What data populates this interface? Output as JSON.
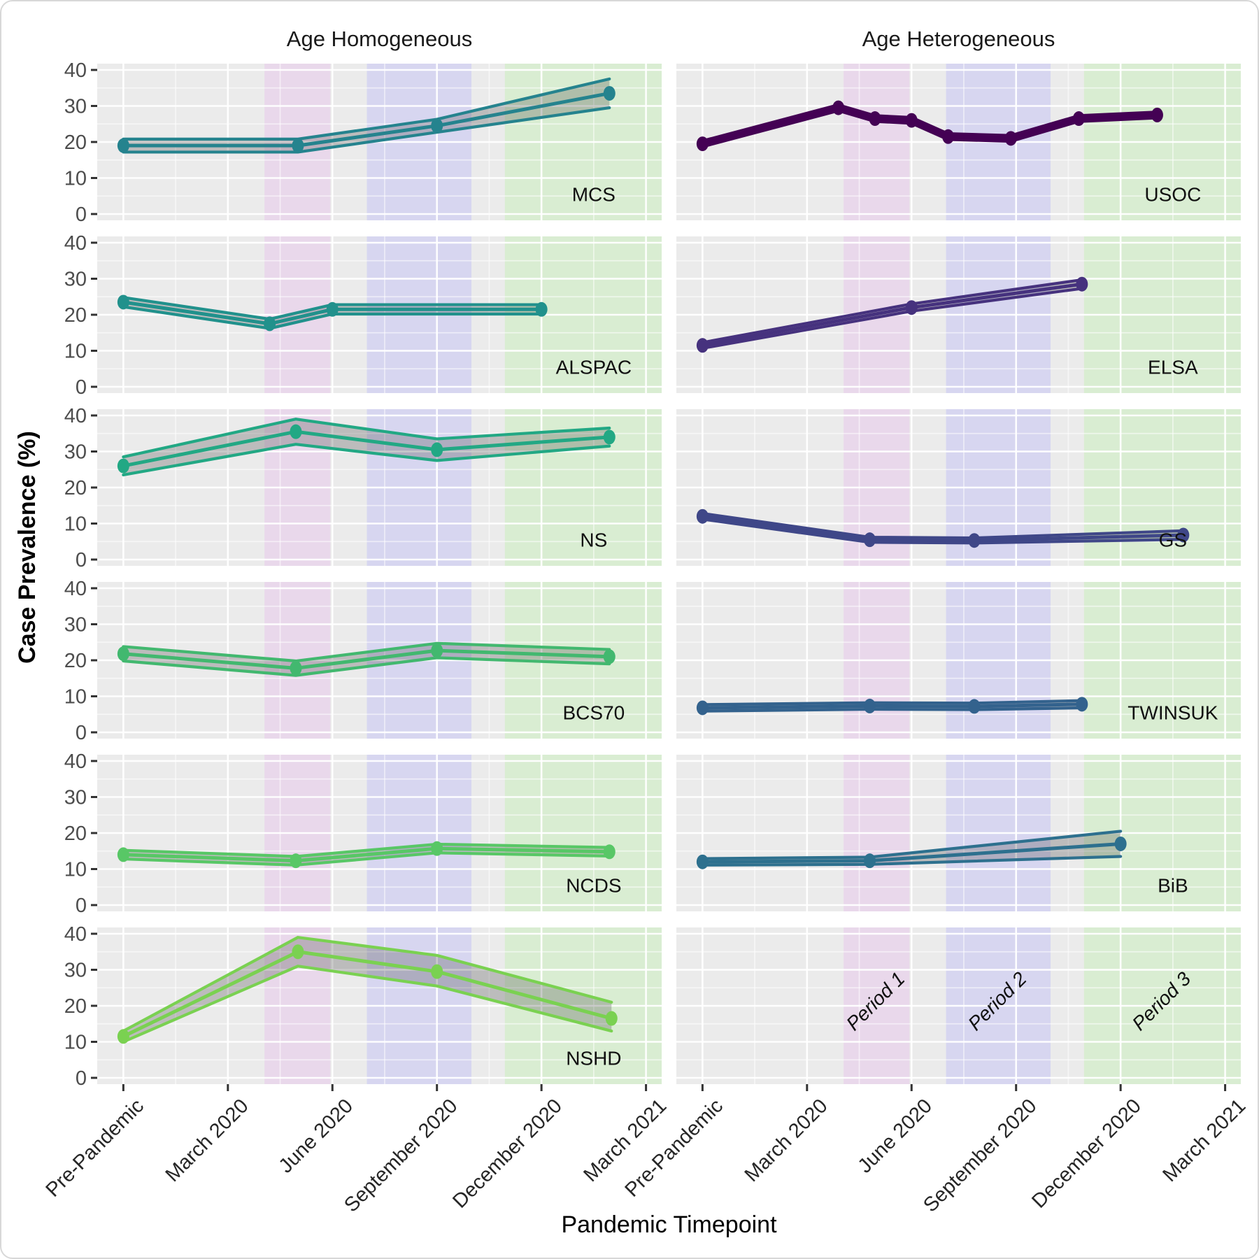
{
  "figure": {
    "facet_titles": [
      "Age Homogeneous",
      "Age Heterogeneous"
    ],
    "xlabel": "Pandemic Timepoint",
    "ylabel": "Case Prevalence (%)"
  },
  "style": {
    "panel_bg": "#ebebeb",
    "grid_major": "rgba(255,255,255,0.95)",
    "grid_minor": "rgba(255,255,255,0.55)",
    "ribbon_fill": "rgba(70,70,70,0.28)",
    "tick_mark_color": "#333333",
    "y_tick_text_color": "#4d4d4d",
    "x_tick_text_color": "#262626",
    "panel_label_color": "#111111",
    "period_label_color": "#111111"
  },
  "chart_data": {
    "type": "line",
    "title": "",
    "xlabel": "Pandemic Timepoint",
    "ylabel": "Case Prevalence (%)",
    "facet_columns": [
      "Age Homogeneous",
      "Age Heterogeneous"
    ],
    "x_categories": [
      "Pre-Pandemic",
      "March 2020",
      "June 2020",
      "September 2020",
      "December 2020",
      "March 2021"
    ],
    "x_domain": [
      -0.25,
      5.15
    ],
    "ylim": [
      0,
      40
    ],
    "yticks": [
      0,
      10,
      20,
      30,
      40
    ],
    "yticks_minor": [
      5,
      15,
      25,
      35
    ],
    "grid": true,
    "study_label_x": 4.5,
    "study_label_y": 5,
    "periods": [
      {
        "label": "Period 1",
        "x0": 1.35,
        "x1": 1.98,
        "color": "#e9d8eb"
      },
      {
        "label": "Period 2",
        "x0": 2.33,
        "x1": 3.33,
        "color": "#d7d6f0"
      },
      {
        "label": "Period 3",
        "x0": 3.65,
        "x1": 5.15,
        "color": "#d9edd2"
      }
    ],
    "panels": [
      {
        "study": "MCS",
        "col": 0,
        "row": 0,
        "color": "#25838e",
        "x": [
          0,
          1.67,
          3.0,
          4.65
        ],
        "y": [
          19,
          19,
          24.5,
          33.5
        ],
        "lo": [
          17.2,
          17.2,
          22.7,
          29.5
        ],
        "hi": [
          20.8,
          20.8,
          26.3,
          37.5
        ]
      },
      {
        "study": "USOC",
        "col": 1,
        "row": 0,
        "color": "#440154",
        "x": [
          0,
          1.3,
          1.65,
          2.0,
          2.35,
          2.95,
          3.6,
          4.35
        ],
        "y": [
          19.5,
          29.5,
          26.5,
          26,
          21.5,
          21,
          26.5,
          27.5
        ],
        "lo": [
          18.7,
          28.7,
          25.7,
          25.2,
          20.7,
          20.2,
          25.7,
          26.7
        ],
        "hi": [
          20.3,
          30.3,
          27.3,
          26.8,
          22.3,
          21.8,
          27.3,
          28.3
        ]
      },
      {
        "study": "ALSPAC",
        "col": 0,
        "row": 1,
        "color": "#21918c",
        "x": [
          0,
          1.4,
          2.0,
          4.0
        ],
        "y": [
          23.5,
          17.5,
          21.5,
          21.5
        ],
        "lo": [
          22.2,
          16.2,
          20.2,
          20.2
        ],
        "hi": [
          24.8,
          18.8,
          22.8,
          22.8
        ]
      },
      {
        "study": "ELSA",
        "col": 1,
        "row": 1,
        "color": "#46327e",
        "x": [
          0,
          2.0,
          3.63
        ],
        "y": [
          11.5,
          22,
          28.5
        ],
        "lo": [
          10.7,
          21,
          27.3
        ],
        "hi": [
          12.3,
          23,
          29.7
        ]
      },
      {
        "study": "NS",
        "col": 0,
        "row": 2,
        "color": "#22a884",
        "x": [
          0,
          1.65,
          3.0,
          4.65
        ],
        "y": [
          26,
          35.5,
          30.5,
          34
        ],
        "lo": [
          23.5,
          32,
          27.5,
          31.5
        ],
        "hi": [
          28.5,
          39,
          33.5,
          36.5
        ]
      },
      {
        "study": "GS",
        "col": 1,
        "row": 2,
        "color": "#3f4788",
        "x": [
          0,
          1.6,
          2.6,
          4.6
        ],
        "y": [
          12,
          5.5,
          5.3,
          6.8
        ],
        "lo": [
          11.2,
          4.8,
          4.6,
          5.6
        ],
        "hi": [
          12.8,
          6.2,
          6.0,
          8.0
        ]
      },
      {
        "study": "BCS70",
        "col": 0,
        "row": 3,
        "color": "#42b86f",
        "x": [
          0,
          1.65,
          3.0,
          4.65
        ],
        "y": [
          21.8,
          17.8,
          22.7,
          21
        ],
        "lo": [
          19.8,
          15.8,
          20.7,
          19
        ],
        "hi": [
          23.8,
          19.8,
          24.7,
          23
        ]
      },
      {
        "study": "TWINSUK",
        "col": 1,
        "row": 3,
        "color": "#33628d",
        "x": [
          0,
          1.6,
          2.6,
          3.63
        ],
        "y": [
          6.8,
          7.3,
          7.2,
          7.8
        ],
        "lo": [
          5.9,
          6.4,
          6.3,
          6.8
        ],
        "hi": [
          7.7,
          8.2,
          8.1,
          8.8
        ]
      },
      {
        "study": "NCDS",
        "col": 0,
        "row": 4,
        "color": "#58c766",
        "x": [
          0,
          1.65,
          3.0,
          4.65
        ],
        "y": [
          14,
          12.3,
          15.7,
          14.8
        ],
        "lo": [
          12.8,
          11.1,
          14.5,
          13.6
        ],
        "hi": [
          15.2,
          13.5,
          16.9,
          16
        ]
      },
      {
        "study": "BiB",
        "col": 1,
        "row": 4,
        "color": "#2d708e",
        "x": [
          0,
          1.6,
          4.0
        ],
        "y": [
          12,
          12.3,
          17
        ],
        "lo": [
          11.1,
          11.3,
          13.5
        ],
        "hi": [
          12.9,
          13.3,
          20.5
        ]
      },
      {
        "study": "NSHD",
        "col": 0,
        "row": 5,
        "color": "#7ad151",
        "x": [
          0,
          1.67,
          3.0,
          4.67
        ],
        "y": [
          11.5,
          35,
          29.5,
          16.5
        ],
        "lo": [
          10,
          31,
          25.5,
          13
        ],
        "hi": [
          13,
          39,
          34,
          21
        ]
      },
      {
        "study": "",
        "col": 1,
        "row": 5,
        "color": "",
        "x": [],
        "y": [],
        "lo": [],
        "hi": [],
        "period_labels": true
      }
    ]
  }
}
